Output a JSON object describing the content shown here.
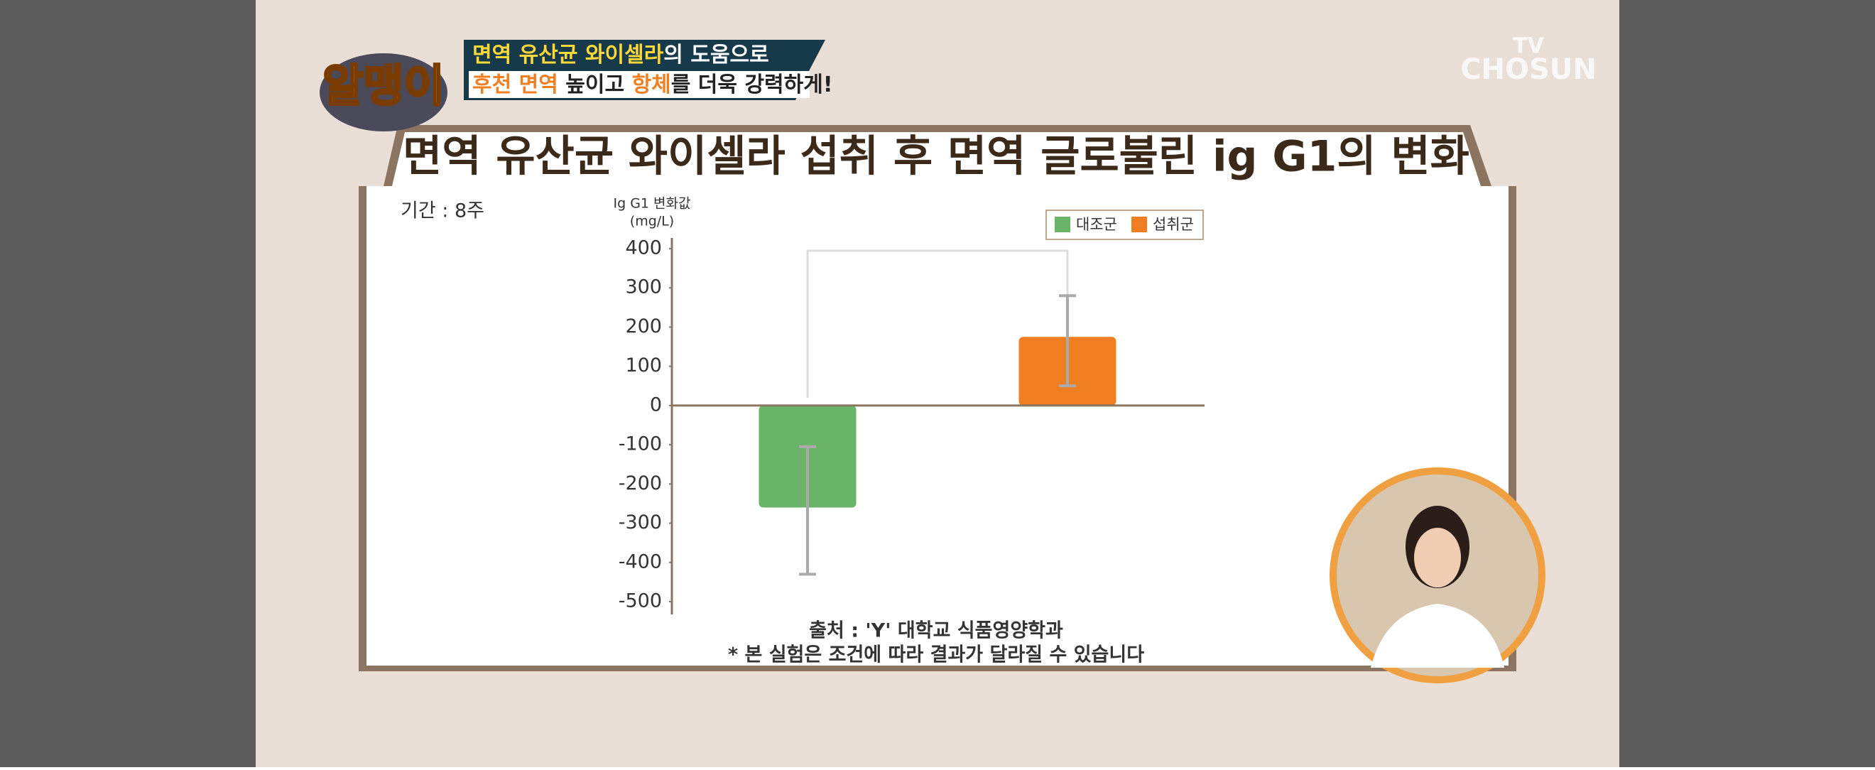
{
  "chart_data": {
    "type": "bar",
    "title": "면역 유산균 와이셀라 섭취 후 면역 글로불린 ig G1의 변화",
    "period": "기간 : 8주",
    "y_label": [
      "Ig G1 변화값",
      "(mg/L)"
    ],
    "categories": [
      null
    ],
    "series": [
      {
        "name": "대조군",
        "color": "#6ab46a",
        "values": [
          -260
        ],
        "error_low": [
          -430
        ],
        "error_high": [
          -105
        ]
      },
      {
        "name": "섭취군",
        "color": "#f07f22",
        "values": [
          175
        ],
        "error_low": [
          50
        ],
        "error_high": [
          280
        ]
      }
    ],
    "ylim": [
      -500,
      400
    ],
    "yticks": [
      -500,
      -400,
      -300,
      -200,
      -100,
      0,
      100,
      200,
      300,
      400
    ],
    "legend": "top-right",
    "source": "출처 : 'Y' 대학교 식품영양학과",
    "note": "* 본 실험은 조건에 따라 결과가 달라질 수 있습니다"
  },
  "banner": {
    "line1": [
      "면역 유산균 와이셀라",
      "의 도움으로"
    ],
    "line2": [
      "후천 면역",
      " 높이고 ",
      "항체",
      "를 더욱 강력하게!"
    ]
  },
  "logo": "알맹이",
  "watermark": [
    "TV",
    "CHOSUN"
  ]
}
